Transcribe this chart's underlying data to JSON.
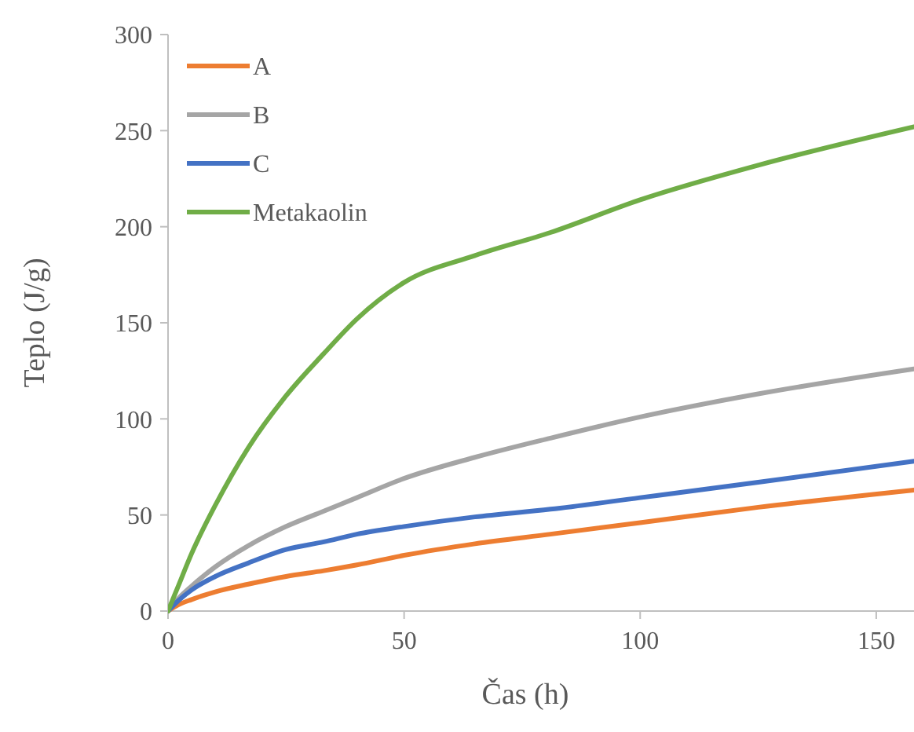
{
  "chart_data": {
    "type": "line",
    "xlabel": "Čas (h)",
    "ylabel": "Teplo (J/g)",
    "xlim": [
      0,
      158
    ],
    "ylim": [
      0,
      300
    ],
    "xticks": [
      0,
      50,
      100,
      150
    ],
    "yticks": [
      0,
      50,
      100,
      150,
      200,
      250,
      300
    ],
    "grid": false,
    "legend": "top left",
    "marker": "none",
    "line_style": "solid",
    "x": [
      0,
      2,
      5,
      10,
      17,
      25,
      33,
      40,
      50,
      65,
      81,
      100,
      125,
      158
    ],
    "series": [
      {
        "name": "A",
        "color": "#ed7d31",
        "values": [
          0,
          3,
          6,
          10,
          14,
          18,
          21,
          24,
          29,
          35,
          40,
          46,
          54,
          63
        ]
      },
      {
        "name": "B",
        "color": "#a5a5a5",
        "values": [
          0,
          6,
          13,
          23,
          34,
          44,
          52,
          59,
          69,
          80,
          90,
          101,
          113,
          126
        ]
      },
      {
        "name": "C",
        "color": "#4472c4",
        "values": [
          0,
          5,
          11,
          18,
          25,
          32,
          36,
          40,
          44,
          49,
          53,
          59,
          67,
          78
        ]
      },
      {
        "name": "Metakaolin",
        "color": "#70ad47",
        "values": [
          0,
          12,
          30,
          55,
          85,
          112,
          134,
          152,
          171,
          185,
          197,
          214,
          232,
          252
        ]
      }
    ]
  }
}
